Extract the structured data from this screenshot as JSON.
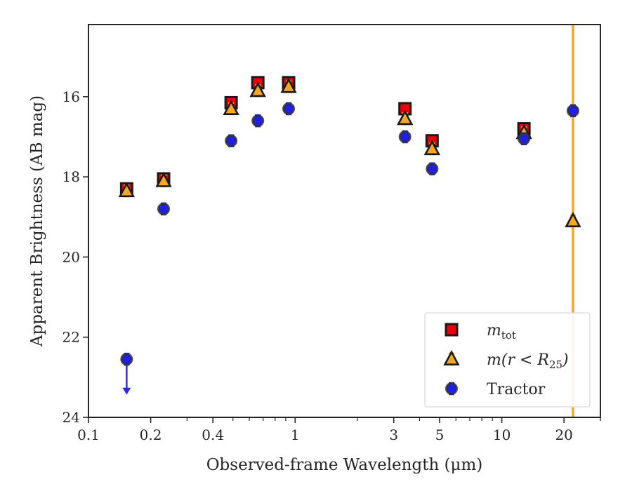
{
  "chart_data": {
    "type": "scatter",
    "title": "",
    "xlabel": "Observed-frame Wavelength (μm)",
    "ylabel": "Apparent Brightness (AB mag)",
    "xscale": "log",
    "xlim": [
      0.1,
      30
    ],
    "ylim": [
      24,
      14.2
    ],
    "y_inverted": true,
    "xticks": [
      {
        "value": 0.1,
        "label": "0.1"
      },
      {
        "value": 0.2,
        "label": "0.2"
      },
      {
        "value": 0.4,
        "label": "0.4"
      },
      {
        "value": 1,
        "label": "1"
      },
      {
        "value": 3,
        "label": "3"
      },
      {
        "value": 5,
        "label": "5"
      },
      {
        "value": 10,
        "label": "10"
      },
      {
        "value": 20,
        "label": "20"
      }
    ],
    "yticks": [
      {
        "value": 16,
        "label": "16"
      },
      {
        "value": 18,
        "label": "18"
      },
      {
        "value": 20,
        "label": "20"
      },
      {
        "value": 22,
        "label": "22"
      },
      {
        "value": 24,
        "label": "24"
      }
    ],
    "grid": false,
    "legend_position": "bottom-right",
    "vertical_line": {
      "x": 22.1,
      "color": "#f5a623"
    },
    "series": [
      {
        "name": "m_tot",
        "legend_main": "m",
        "legend_sub": "tot",
        "marker": "square",
        "color": "#e8000b",
        "edge_color": "#1a1a1a",
        "errorbar_color": "#e8000b",
        "x": [
          0.153,
          0.231,
          0.49,
          0.66,
          0.93,
          3.4,
          4.6,
          12.8
        ],
        "y": [
          18.3,
          18.05,
          16.15,
          15.65,
          15.65,
          16.3,
          17.1,
          16.8
        ]
      },
      {
        "name": "m(r < R_25)",
        "legend_main": "m(r < R",
        "legend_sub": "25",
        "legend_tail": ")",
        "marker": "triangle",
        "color": "#f5a623",
        "edge_color": "#1a1a1a",
        "errorbar_color": "#f5a623",
        "x": [
          0.153,
          0.231,
          0.49,
          0.66,
          0.93,
          3.4,
          4.6,
          12.8,
          22.1
        ],
        "y": [
          18.35,
          18.1,
          16.3,
          15.85,
          15.75,
          16.55,
          17.3,
          16.9,
          19.1
        ]
      },
      {
        "name": "Tractor",
        "legend_main": "Tractor",
        "marker": "circle",
        "color": "#1f1fe8",
        "edge_color": "#333333",
        "errorbar_color": "#1f1fe8",
        "x": [
          0.153,
          0.231,
          0.49,
          0.66,
          0.93,
          3.4,
          4.6,
          12.8,
          22.1
        ],
        "y": [
          22.55,
          18.8,
          17.1,
          16.6,
          16.3,
          17.0,
          17.8,
          17.05,
          16.35
        ],
        "upper_limit_index": 0,
        "upper_limit_arrow_to": 23.4
      }
    ]
  }
}
